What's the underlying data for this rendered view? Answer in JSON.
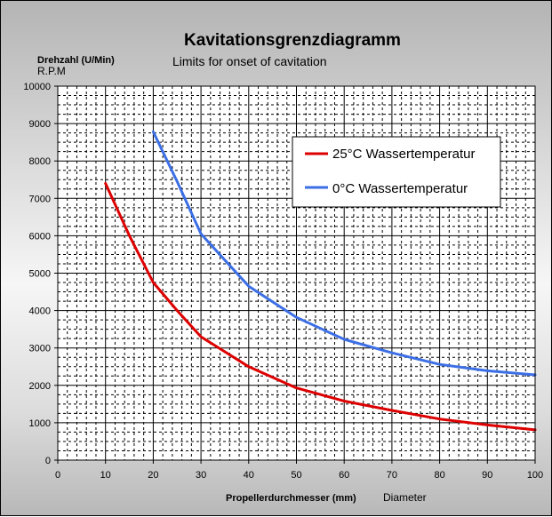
{
  "chart_data": {
    "type": "line",
    "title": "Kavitationsgrenzdiagramm",
    "subtitle": "Limits for onset of cavitation",
    "ylabel": "Drehzahl (U/Min)",
    "ylabel_secondary": "R.P.M",
    "xlabel": "Propellerdurchmesser (mm)",
    "xlabel_secondary": "Diameter",
    "xlim": [
      0,
      100
    ],
    "ylim": [
      0,
      10000
    ],
    "x_ticks": [
      "0",
      "10",
      "20",
      "30",
      "40",
      "50",
      "60",
      "70",
      "80",
      "90",
      "100"
    ],
    "y_ticks": [
      "0",
      "1000",
      "2000",
      "3000",
      "4000",
      "5000",
      "6000",
      "7000",
      "8000",
      "9000",
      "10000"
    ],
    "grid": true,
    "legend_position": "top-right",
    "series": [
      {
        "name": "25°C Wassertemperatur",
        "color": "#dd0000",
        "points": [
          [
            10,
            7400
          ],
          [
            15,
            6000
          ],
          [
            20,
            4750
          ],
          [
            25,
            4000
          ],
          [
            30,
            3300
          ],
          [
            40,
            2500
          ],
          [
            50,
            1930
          ],
          [
            60,
            1580
          ],
          [
            70,
            1330
          ],
          [
            80,
            1100
          ],
          [
            90,
            940
          ],
          [
            100,
            810
          ]
        ]
      },
      {
        "name": "0°C Wassertemperatur",
        "color": "#3c6fe6",
        "points": [
          [
            20,
            8780
          ],
          [
            25,
            7450
          ],
          [
            30,
            6050
          ],
          [
            35,
            5350
          ],
          [
            40,
            4650
          ],
          [
            50,
            3820
          ],
          [
            60,
            3230
          ],
          [
            70,
            2870
          ],
          [
            80,
            2560
          ],
          [
            90,
            2390
          ],
          [
            100,
            2280
          ]
        ]
      }
    ]
  }
}
